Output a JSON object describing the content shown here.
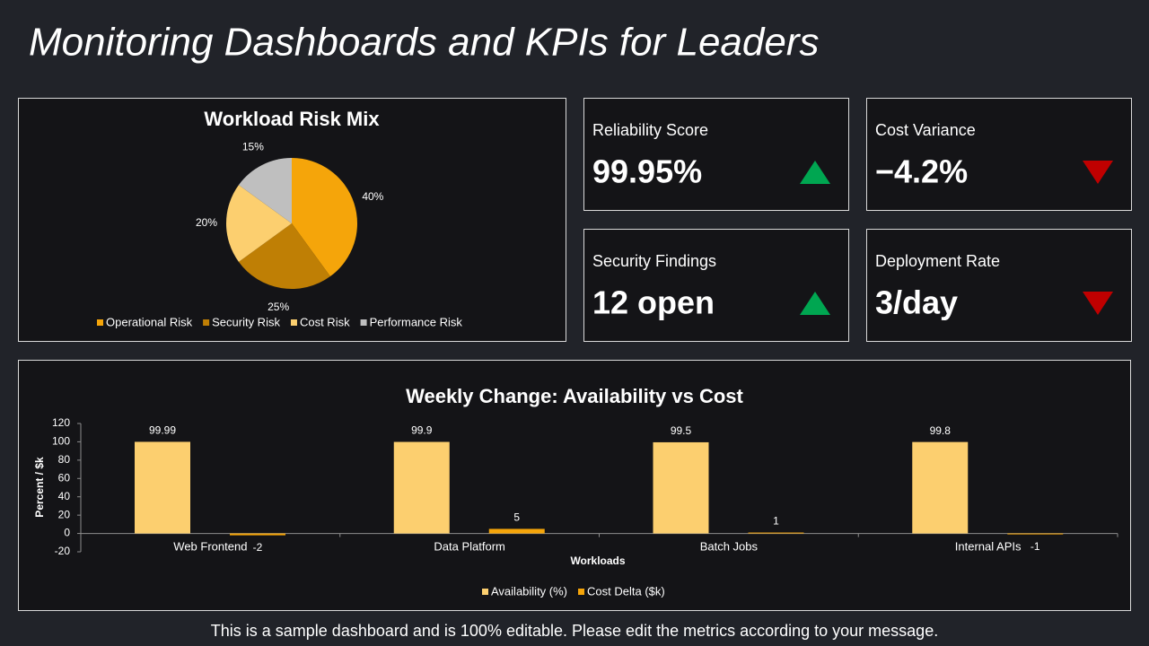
{
  "title": "Monitoring Dashboards and KPIs for Leaders",
  "kpis": [
    {
      "label": "Reliability Score",
      "value": "99.95%",
      "trend": "up"
    },
    {
      "label": "Cost Variance",
      "value": "−4.2%",
      "trend": "down"
    },
    {
      "label": "Security Findings",
      "value": "12 open",
      "trend": "up"
    },
    {
      "label": "Deployment Rate",
      "value": "3/day",
      "trend": "down"
    }
  ],
  "footer": "This is a sample dashboard and is 100% editable. Please edit the metrics according to your message.",
  "chart_data": [
    {
      "type": "pie",
      "title": "Workload Risk Mix",
      "categories": [
        "Operational Risk",
        "Security Risk",
        "Cost Risk",
        "Performance Risk"
      ],
      "values": [
        40,
        25,
        20,
        15
      ],
      "value_labels": [
        "40%",
        "25%",
        "20%",
        "15%"
      ],
      "colors": [
        "#f5a50a",
        "#bf7f05",
        "#fccf6f",
        "#bfbfbf"
      ],
      "legend": "bottom"
    },
    {
      "type": "bar",
      "title": "Weekly Change: Availability vs Cost",
      "categories": [
        "Web Frontend",
        "Data Platform",
        "Batch Jobs",
        "Internal APIs"
      ],
      "series": [
        {
          "name": "Availability (%)",
          "color": "#fccf6f",
          "values": [
            99.99,
            99.9,
            99.5,
            99.8
          ]
        },
        {
          "name": "Cost Delta ($k)",
          "color": "#f5a50a",
          "values": [
            -2,
            5,
            1,
            -1
          ]
        }
      ],
      "x_label": "Workloads",
      "y_label": "Percent / $k",
      "ylim": [
        -20,
        120
      ],
      "yticks": [
        -20,
        0,
        20,
        40,
        60,
        80,
        100,
        120
      ],
      "legend": "bottom",
      "grid": false
    }
  ]
}
